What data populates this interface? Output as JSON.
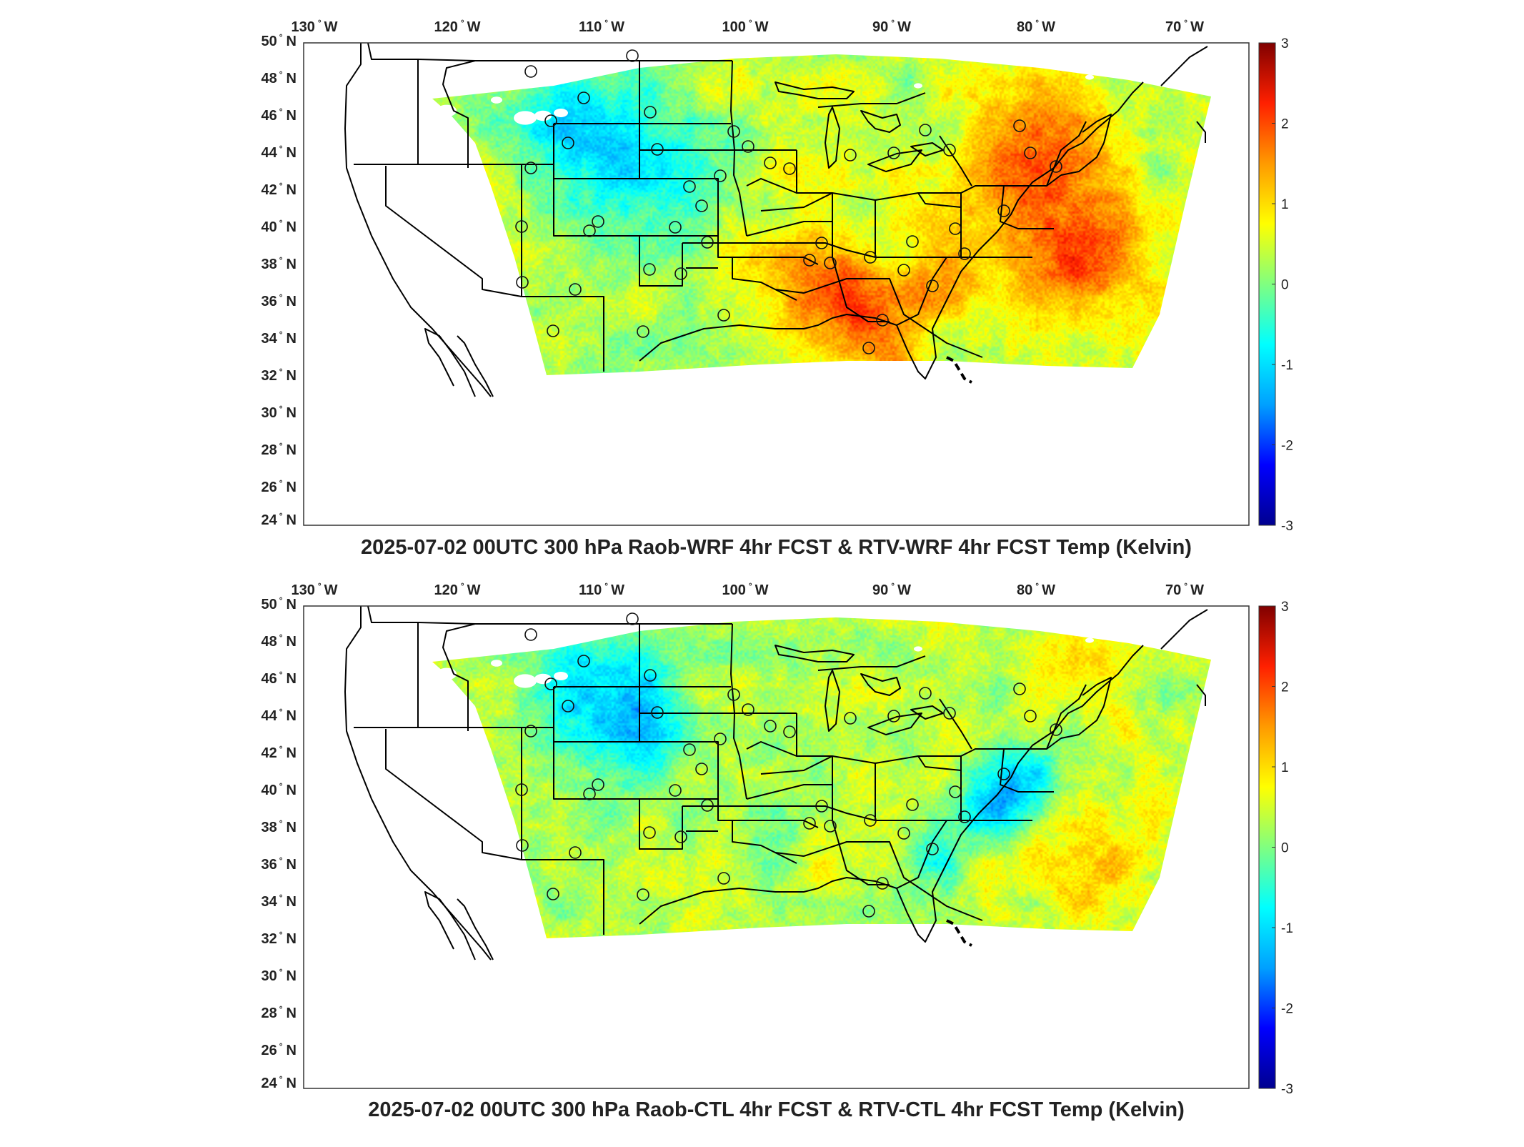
{
  "figure": {
    "colorscale": [
      "#00008f",
      "#0000ff",
      "#00a0ff",
      "#00ffff",
      "#80ff80",
      "#ffff00",
      "#ff9a00",
      "#ff2000",
      "#800000"
    ],
    "land_fill": "#ffffff",
    "border_color": "#000000"
  },
  "panels": [
    {
      "title": "2025-07-02 00UTC 300 hPa Raob-WRF 4hr FCST & RTV-WRF 4hr FCST Temp (Kelvin)",
      "lon_labels": [
        {
          "deg": "130",
          "dir": "W"
        },
        {
          "deg": "120",
          "dir": "W"
        },
        {
          "deg": "110",
          "dir": "W"
        },
        {
          "deg": "100",
          "dir": "W"
        },
        {
          "deg": "90",
          "dir": "W"
        },
        {
          "deg": "80",
          "dir": "W"
        },
        {
          "deg": "70",
          "dir": "W"
        }
      ],
      "lat_labels": [
        {
          "deg": "50",
          "dir": "N"
        },
        {
          "deg": "48",
          "dir": "N"
        },
        {
          "deg": "46",
          "dir": "N"
        },
        {
          "deg": "44",
          "dir": "N"
        },
        {
          "deg": "42",
          "dir": "N"
        },
        {
          "deg": "40",
          "dir": "N"
        },
        {
          "deg": "38",
          "dir": "N"
        },
        {
          "deg": "36",
          "dir": "N"
        },
        {
          "deg": "34",
          "dir": "N"
        },
        {
          "deg": "32",
          "dir": "N"
        },
        {
          "deg": "30",
          "dir": "N"
        },
        {
          "deg": "28",
          "dir": "N"
        },
        {
          "deg": "26",
          "dir": "N"
        },
        {
          "deg": "24",
          "dir": "N"
        }
      ],
      "colorbar": {
        "min": -3,
        "max": 3,
        "tick_labels": [
          "3",
          "2",
          "1",
          "0",
          "-1",
          "-2",
          "-3"
        ]
      }
    },
    {
      "title": "2025-07-02 00UTC 300 hPa Raob-CTL 4hr FCST & RTV-CTL 4hr FCST Temp (Kelvin)",
      "lon_labels": [
        {
          "deg": "130",
          "dir": "W"
        },
        {
          "deg": "120",
          "dir": "W"
        },
        {
          "deg": "110",
          "dir": "W"
        },
        {
          "deg": "100",
          "dir": "W"
        },
        {
          "deg": "90",
          "dir": "W"
        },
        {
          "deg": "80",
          "dir": "W"
        },
        {
          "deg": "70",
          "dir": "W"
        }
      ],
      "lat_labels": [
        {
          "deg": "50",
          "dir": "N"
        },
        {
          "deg": "48",
          "dir": "N"
        },
        {
          "deg": "46",
          "dir": "N"
        },
        {
          "deg": "44",
          "dir": "N"
        },
        {
          "deg": "42",
          "dir": "N"
        },
        {
          "deg": "40",
          "dir": "N"
        },
        {
          "deg": "38",
          "dir": "N"
        },
        {
          "deg": "36",
          "dir": "N"
        },
        {
          "deg": "34",
          "dir": "N"
        },
        {
          "deg": "32",
          "dir": "N"
        },
        {
          "deg": "30",
          "dir": "N"
        },
        {
          "deg": "28",
          "dir": "N"
        },
        {
          "deg": "26",
          "dir": "N"
        },
        {
          "deg": "24",
          "dir": "N"
        }
      ],
      "colorbar": {
        "min": -3,
        "max": 3,
        "tick_labels": [
          "3",
          "2",
          "1",
          "0",
          "-1",
          "-2",
          "-3"
        ]
      }
    }
  ]
}
